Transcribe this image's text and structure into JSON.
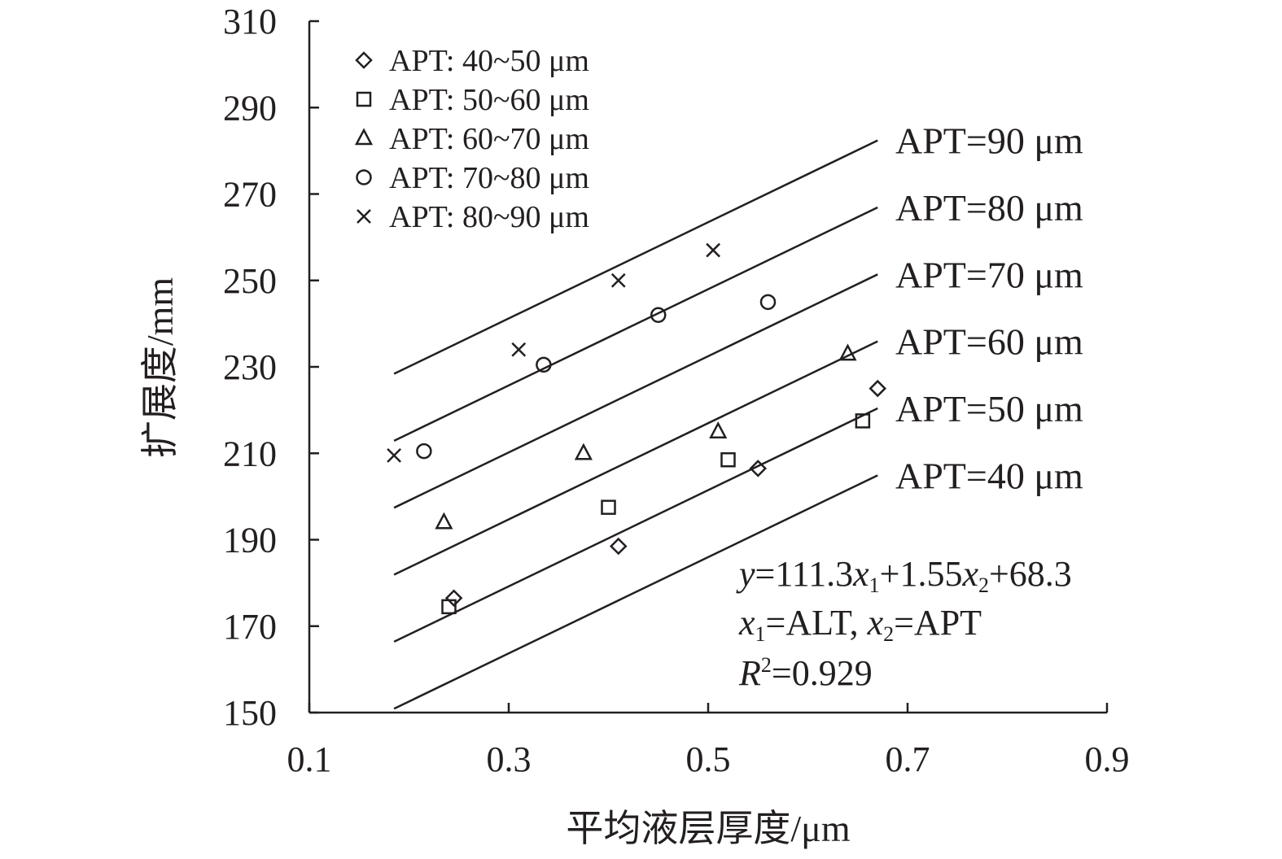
{
  "chart_data": {
    "type": "scatter",
    "xlabel": "平均液层厚度/μm",
    "ylabel": "扩展度/mm",
    "xlim": [
      0.1,
      0.9
    ],
    "ylim": [
      150,
      310
    ],
    "xticks": [
      0.1,
      0.3,
      0.5,
      0.7,
      0.9
    ],
    "yticks": [
      150,
      170,
      190,
      210,
      230,
      250,
      270,
      290,
      310
    ],
    "grid": false,
    "legend_position": "top-left",
    "series": [
      {
        "name": "APT: 40~50 μm",
        "marker": "diamond",
        "points": [
          [
            0.245,
            176.5
          ],
          [
            0.41,
            188.5
          ],
          [
            0.55,
            206.5
          ],
          [
            0.67,
            225
          ]
        ]
      },
      {
        "name": "APT: 50~60 μm",
        "marker": "square",
        "points": [
          [
            0.24,
            174.5
          ],
          [
            0.4,
            197.5
          ],
          [
            0.52,
            208.5
          ],
          [
            0.655,
            217.5
          ]
        ]
      },
      {
        "name": "APT: 60~70 μm",
        "marker": "triangle",
        "points": [
          [
            0.235,
            194
          ],
          [
            0.375,
            210
          ],
          [
            0.51,
            215
          ],
          [
            0.64,
            233
          ]
        ]
      },
      {
        "name": "APT: 70~80 μm",
        "marker": "circle",
        "points": [
          [
            0.215,
            210.5
          ],
          [
            0.335,
            230.5
          ],
          [
            0.45,
            242
          ],
          [
            0.56,
            245
          ]
        ]
      },
      {
        "name": "APT: 80~90 μm",
        "marker": "cross",
        "points": [
          [
            0.185,
            209.5
          ],
          [
            0.31,
            234
          ],
          [
            0.41,
            250
          ],
          [
            0.505,
            257
          ]
        ]
      }
    ],
    "fit_lines": [
      {
        "label": "APT=90 μm",
        "x": [
          0.185,
          0.67
        ],
        "y": [
          228.4,
          282.4
        ]
      },
      {
        "label": "APT=80 μm",
        "x": [
          0.185,
          0.67
        ],
        "y": [
          212.9,
          266.9
        ]
      },
      {
        "label": "APT=70 μm",
        "x": [
          0.185,
          0.67
        ],
        "y": [
          197.4,
          251.4
        ]
      },
      {
        "label": "APT=60 μm",
        "x": [
          0.185,
          0.67
        ],
        "y": [
          181.9,
          235.9
        ]
      },
      {
        "label": "APT=50 μm",
        "x": [
          0.185,
          0.67
        ],
        "y": [
          166.4,
          220.4
        ]
      },
      {
        "label": "APT=40 μm",
        "x": [
          0.185,
          0.67
        ],
        "y": [
          150.9,
          204.9
        ]
      }
    ],
    "annotation": {
      "line1": {
        "y": "y",
        "eq": "=111.3",
        "x1": "x",
        "sub1": "1",
        "plus": "+1.55",
        "x2": "x",
        "sub2": "2",
        "tail": "+68.3"
      },
      "line2": {
        "x1": "x",
        "sub1": "1",
        "t1": "=ALT, ",
        "x2": "x",
        "sub2": "2",
        "t2": "=APT"
      },
      "line3": {
        "r": "R",
        "sup": "2",
        "t": "=0.929"
      }
    }
  }
}
